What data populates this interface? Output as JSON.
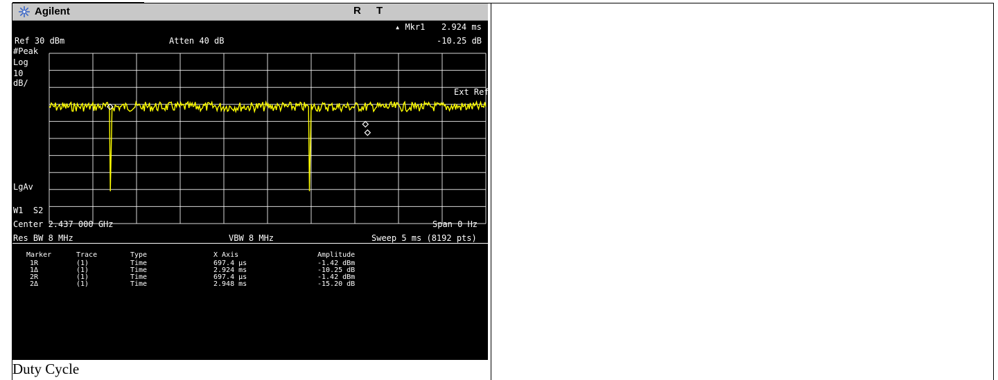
{
  "caption": "Duty Cycle",
  "analyzer": {
    "brand": "Agilent",
    "status_r": "R",
    "status_t": "T",
    "marker_readout_label": "▴ Mkr1",
    "marker_readout_x": "2.924 ms",
    "marker_readout_y": "-10.25 dB",
    "ref_level": "Ref 30 dBm",
    "atten": "Atten 40 dB",
    "detector": "#Peak",
    "scale_type": "Log",
    "scale_value": "10",
    "scale_unit": "dB/",
    "ext_ref": "Ext Ref",
    "avg_type": "LgAv",
    "w1s2": "W1  S2",
    "center_freq": "Center 2.437 000 GHz",
    "span": "Span 0 Hz",
    "res_bw": "Res BW 8 MHz",
    "vbw": "VBW 8 MHz",
    "sweep": "Sweep 5 ms (8192 pts)",
    "marker_table": {
      "headers": [
        "Marker",
        "Trace",
        "Type",
        "X Axis",
        "Amplitude"
      ],
      "rows": [
        [
          "1R",
          "(1)",
          "Time",
          "697.4 µs",
          "-1.42 dBm"
        ],
        [
          "1Δ",
          "(1)",
          "Time",
          "2.924 ms",
          "-10.25 dB"
        ],
        [
          "2R",
          "(1)",
          "Time",
          "697.4 µs",
          "-1.42 dBm"
        ],
        [
          "2Δ",
          "(1)",
          "Time",
          "2.948 ms",
          "-15.20 dB"
        ]
      ]
    },
    "colors": {
      "trace": "#ffff00",
      "background": "#000000",
      "grid": "#ffffff"
    }
  },
  "chart_data": {
    "type": "line",
    "xlabel": "",
    "ylabel": "",
    "xlim": [
      0,
      5
    ],
    "ylim": [
      -70,
      30
    ],
    "grid": true,
    "series": [
      {
        "points": [
          [
            0.0,
            -1.4
          ],
          [
            0.69,
            -1.4
          ],
          [
            0.7,
            -51
          ],
          [
            0.72,
            -1.4
          ],
          [
            2.97,
            -1.4
          ],
          [
            2.98,
            -51
          ],
          [
            3.0,
            -1.4
          ],
          [
            5.0,
            -1.4
          ]
        ]
      }
    ],
    "markers": [
      {
        "label": "1R",
        "x": 0.6974,
        "y": -1.42
      },
      {
        "label": "1Δ",
        "x": 3.6214,
        "y": -11.67
      },
      {
        "label": "2Δ",
        "x": 3.6454,
        "y": -16.62
      }
    ]
  }
}
